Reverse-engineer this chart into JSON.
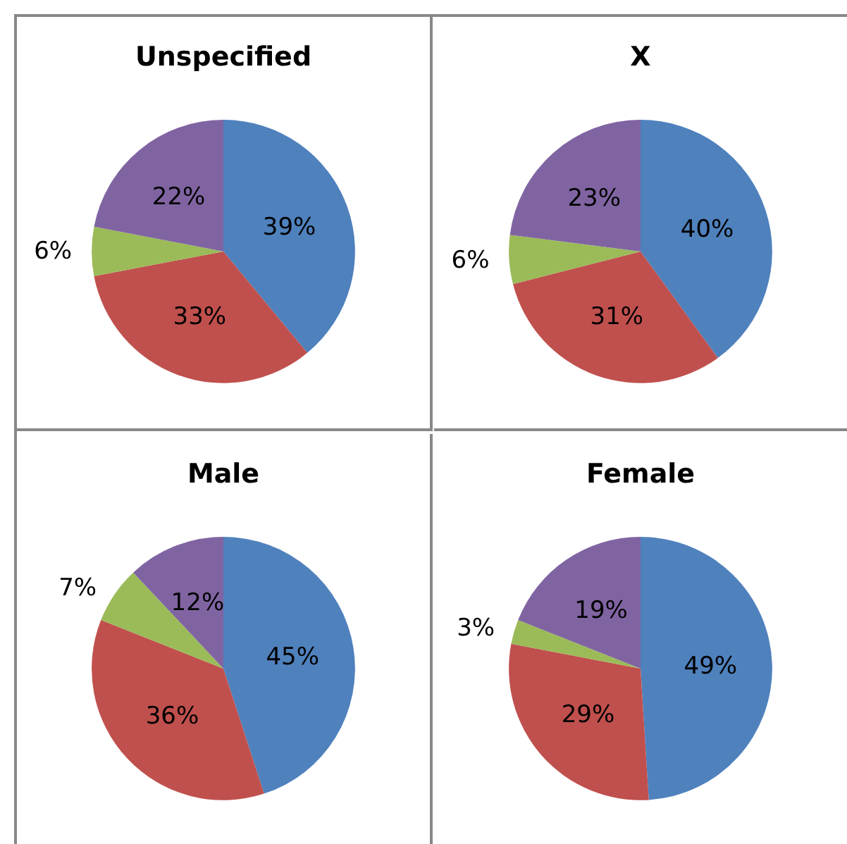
{
  "chart_data": [
    {
      "type": "pie",
      "title": "Unspecified",
      "categories": [
        null,
        null,
        null,
        null
      ],
      "values": [
        39,
        33,
        6,
        22
      ],
      "colors": [
        "#4f81bd",
        "#c0504d",
        "#9bbb59",
        "#8064a2"
      ],
      "value_labels": [
        "39%",
        "33%",
        "6%",
        "22%"
      ]
    },
    {
      "type": "pie",
      "title": "X",
      "categories": [
        null,
        null,
        null,
        null
      ],
      "values": [
        40,
        31,
        6,
        23
      ],
      "colors": [
        "#4f81bd",
        "#c0504d",
        "#9bbb59",
        "#8064a2"
      ],
      "value_labels": [
        "40%",
        "31%",
        "6%",
        "23%"
      ]
    },
    {
      "type": "pie",
      "title": "Male",
      "categories": [
        null,
        null,
        null,
        null
      ],
      "values": [
        45,
        36,
        7,
        12
      ],
      "colors": [
        "#4f81bd",
        "#c0504d",
        "#9bbb59",
        "#8064a2"
      ],
      "value_labels": [
        "45%",
        "36%",
        "7%",
        "12%"
      ]
    },
    {
      "type": "pie",
      "title": "Female",
      "categories": [
        null,
        null,
        null,
        null
      ],
      "values": [
        49,
        29,
        3,
        19
      ],
      "colors": [
        "#4f81bd",
        "#c0504d",
        "#9bbb59",
        "#8064a2"
      ],
      "value_labels": [
        "49%",
        "29%",
        "3%",
        "19%"
      ]
    }
  ]
}
